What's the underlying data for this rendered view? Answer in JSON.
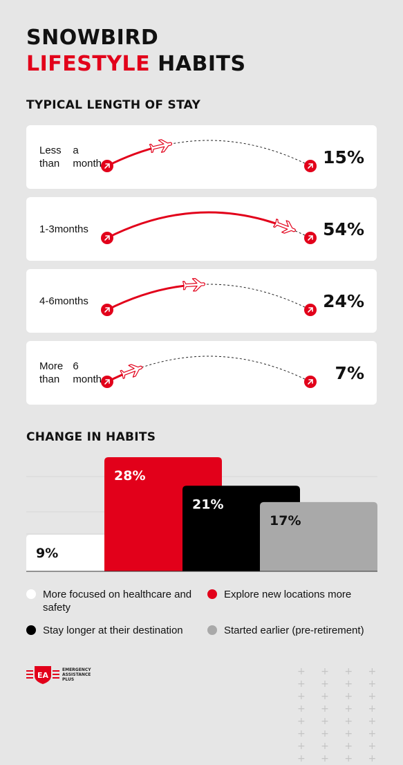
{
  "title": {
    "line1": "SNOWBIRD",
    "line2_red": "LIFESTYLE",
    "line2_rest": "HABITS"
  },
  "stay_section": {
    "title": "TYPICAL LENGTH OF STAY"
  },
  "change_section": {
    "title": "CHANGE IN HABITS"
  },
  "colors": {
    "red": "#e2001a",
    "black": "#000000",
    "white": "#ffffff",
    "gray": "#a9a9a9",
    "background": "#e6e6e6"
  },
  "chart_data": [
    {
      "type": "bar",
      "title": "TYPICAL LENGTH OF STAY",
      "categories": [
        "Less than a month",
        "1-3 months",
        "4-6 months",
        "More than 6 month"
      ],
      "values": [
        15,
        54,
        24,
        7
      ],
      "value_labels": [
        "15%",
        "54%",
        "24%",
        "7%"
      ],
      "label_lines": [
        [
          "Less than",
          "a month"
        ],
        [
          "1-3",
          "months"
        ],
        [
          "4-6",
          "months"
        ],
        [
          "More than",
          "6 month"
        ]
      ],
      "icon": "airplane-icon",
      "ylim": [
        0,
        100
      ],
      "unit": "%"
    },
    {
      "type": "bar",
      "title": "CHANGE IN HABITS",
      "categories": [
        "More focused on healthcare and safety",
        "Explore new locations more",
        "Stay longer at their destination",
        "Started earlier (pre-retirement)"
      ],
      "values": [
        9,
        28,
        21,
        17
      ],
      "value_labels": [
        "9%",
        "28%",
        "21%",
        "17%"
      ],
      "colors": [
        "#ffffff",
        "#e2001a",
        "#000000",
        "#a9a9a9"
      ],
      "label_colors": [
        "#111111",
        "#ffffff",
        "#ffffff",
        "#111111"
      ],
      "ylim": [
        0,
        28
      ],
      "grid": true,
      "legend": "bottom"
    }
  ],
  "legend": {
    "items": [
      {
        "label": "More focused on healthcare and safety",
        "color": "#ffffff"
      },
      {
        "label": "Explore new locations more",
        "color": "#e2001a"
      },
      {
        "label": "Stay longer at their destination",
        "color": "#000000"
      },
      {
        "label": "Started earlier (pre-retirement)",
        "color": "#a9a9a9"
      }
    ]
  },
  "logo": {
    "mark": "EA",
    "lines": [
      "EMERGENCY",
      "ASSISTANCE",
      "PLUS"
    ]
  },
  "decoration": {
    "crosses": "+ + + + + + + + + + + + + + + + + + + + + + + + + + + + + + + +"
  }
}
